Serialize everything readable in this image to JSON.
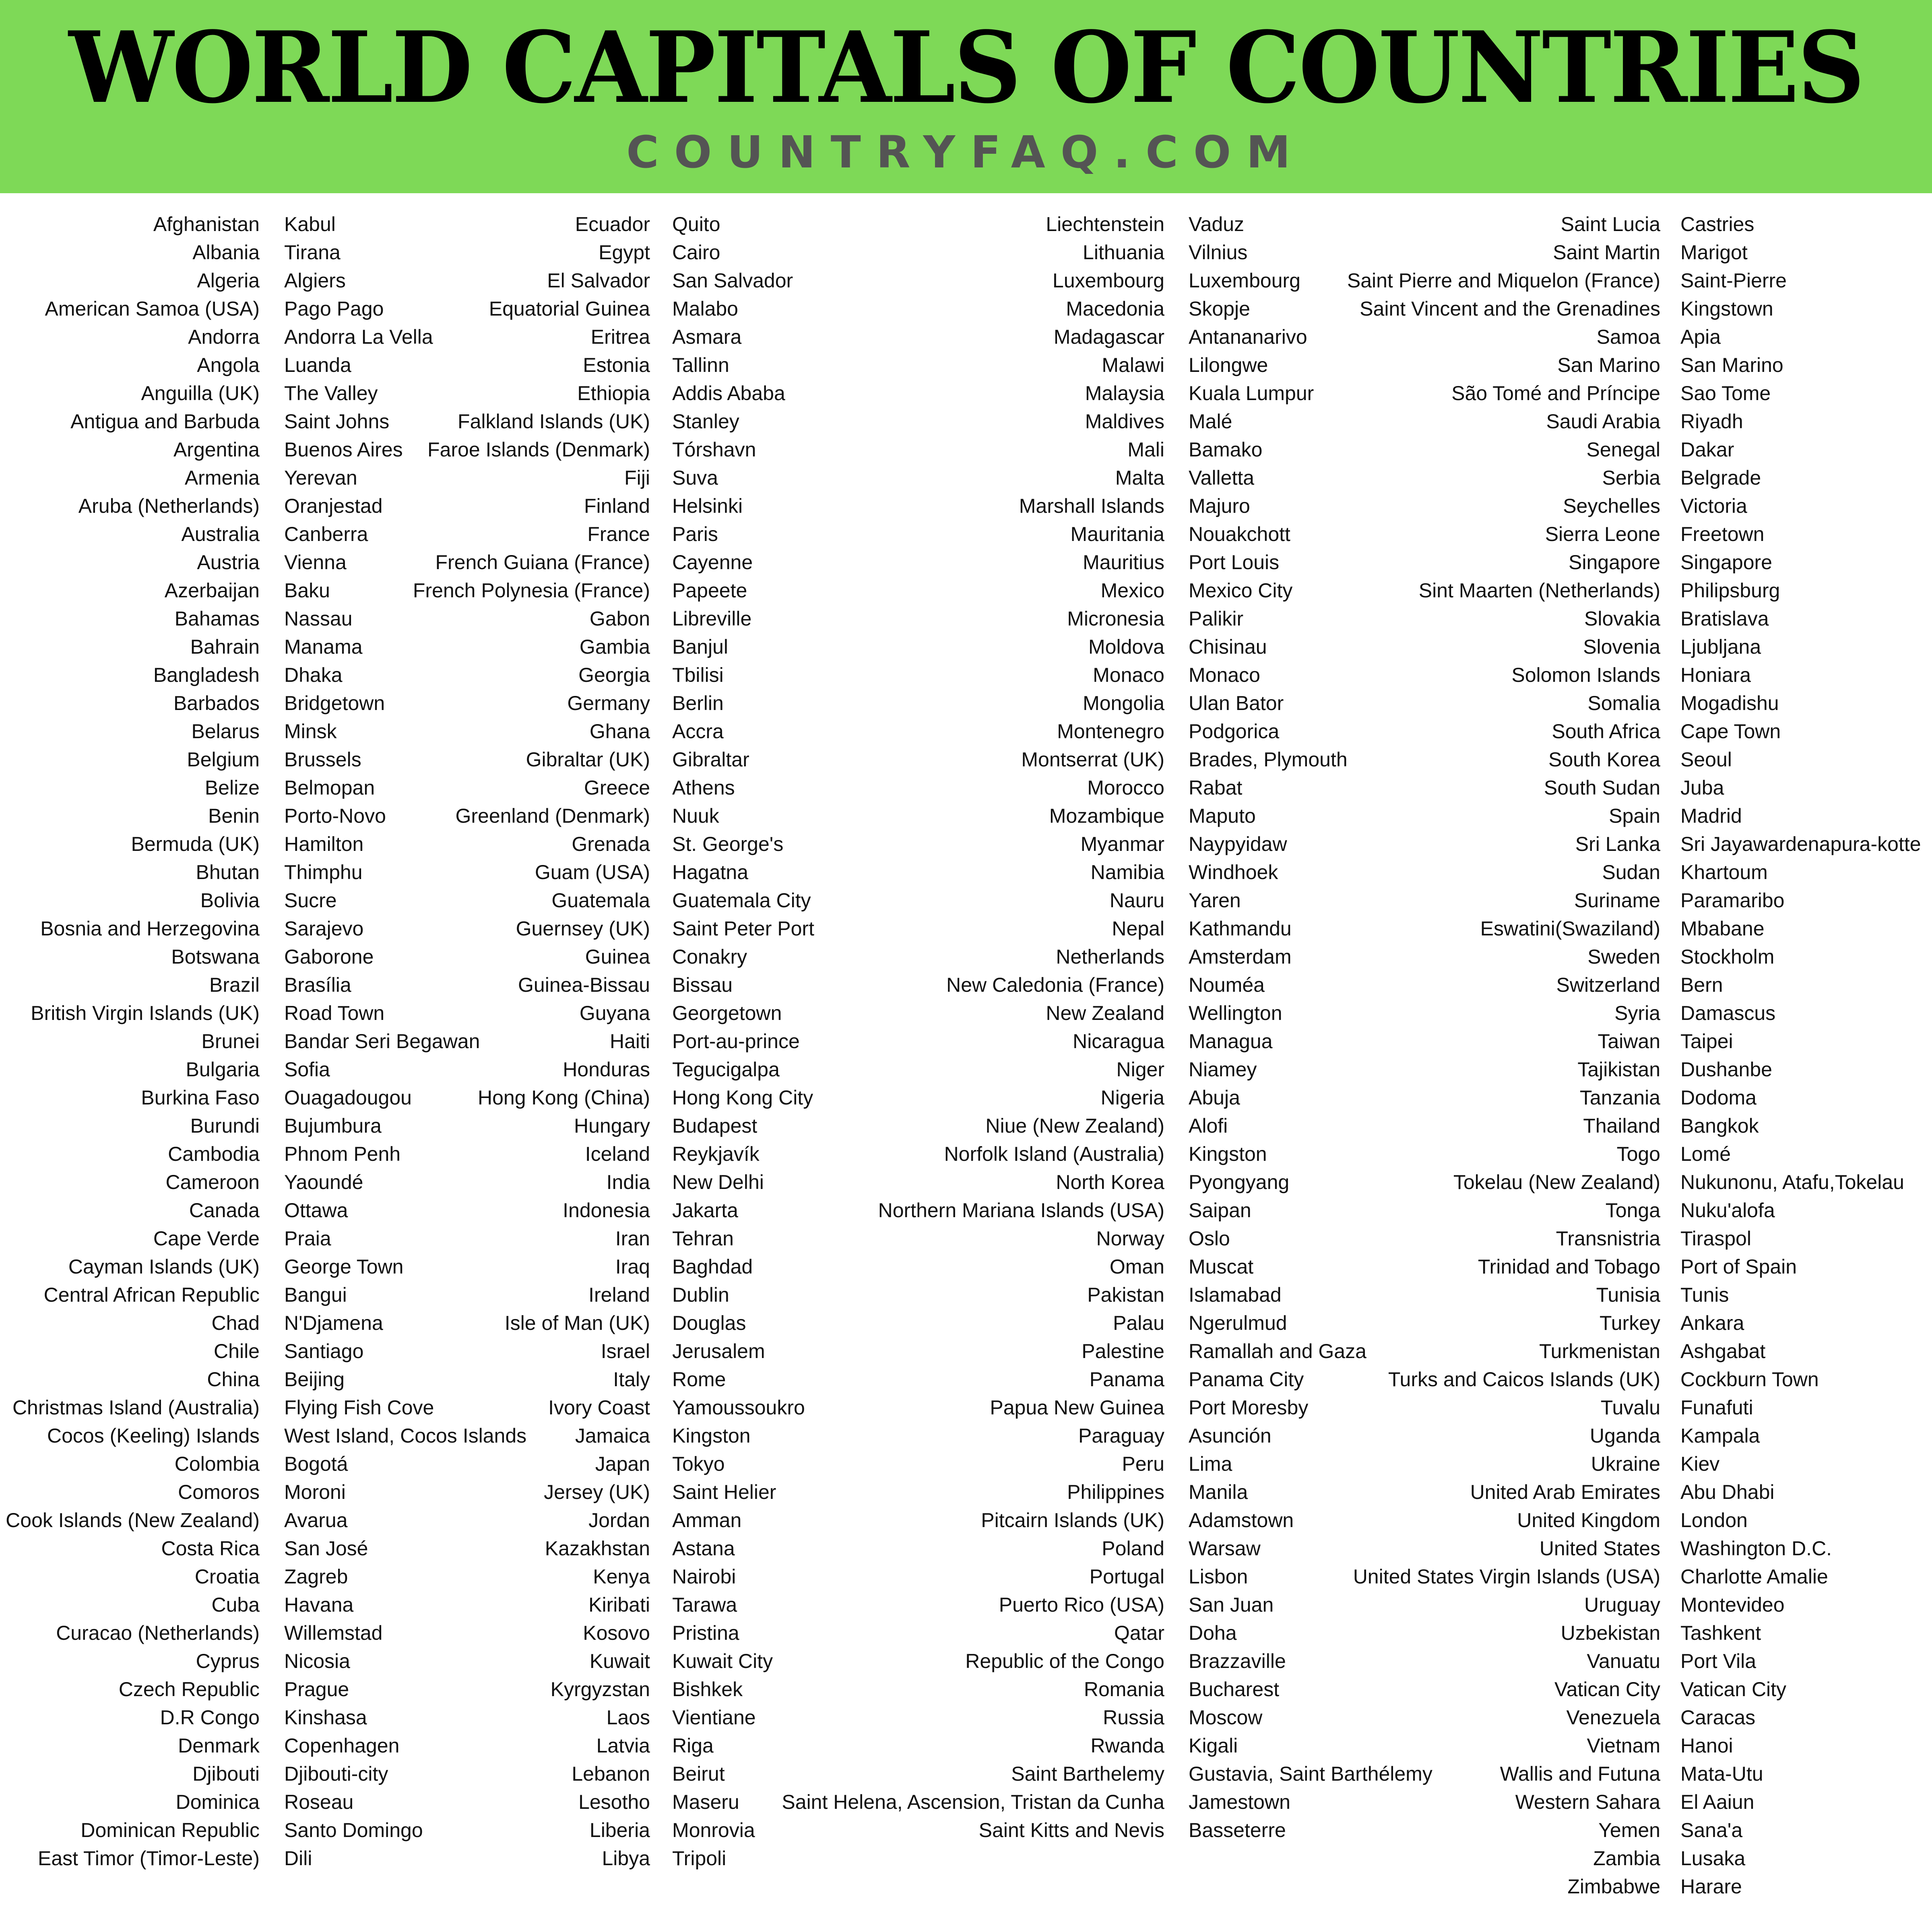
{
  "header": {
    "title": "WORLD CAPITALS OF COUNTRIES",
    "subtitle": "COUNTRYFAQ.COM",
    "background_color": "#7ed957",
    "subtitle_color": "#545454"
  },
  "columns": [
    [
      {
        "country": "Afghanistan",
        "capital": "Kabul"
      },
      {
        "country": "Albania",
        "capital": "Tirana"
      },
      {
        "country": "Algeria",
        "capital": "Algiers"
      },
      {
        "country": "American Samoa (USA)",
        "capital": "Pago Pago"
      },
      {
        "country": "Andorra",
        "capital": "Andorra La Vella"
      },
      {
        "country": "Angola",
        "capital": "Luanda"
      },
      {
        "country": "Anguilla (UK)",
        "capital": "The Valley"
      },
      {
        "country": "Antigua and Barbuda",
        "capital": "Saint Johns"
      },
      {
        "country": "Argentina",
        "capital": "Buenos Aires"
      },
      {
        "country": "Armenia",
        "capital": "Yerevan"
      },
      {
        "country": "Aruba (Netherlands)",
        "capital": "Oranjestad"
      },
      {
        "country": "Australia",
        "capital": "Canberra"
      },
      {
        "country": "Austria",
        "capital": "Vienna"
      },
      {
        "country": "Azerbaijan",
        "capital": "Baku"
      },
      {
        "country": "Bahamas",
        "capital": "Nassau"
      },
      {
        "country": "Bahrain",
        "capital": "Manama"
      },
      {
        "country": "Bangladesh",
        "capital": "Dhaka"
      },
      {
        "country": "Barbados",
        "capital": "Bridgetown"
      },
      {
        "country": "Belarus",
        "capital": "Minsk"
      },
      {
        "country": "Belgium",
        "capital": "Brussels"
      },
      {
        "country": "Belize",
        "capital": "Belmopan"
      },
      {
        "country": "Benin",
        "capital": "Porto-Novo"
      },
      {
        "country": "Bermuda (UK)",
        "capital": "Hamilton"
      },
      {
        "country": "Bhutan",
        "capital": "Thimphu"
      },
      {
        "country": "Bolivia",
        "capital": "Sucre"
      },
      {
        "country": "Bosnia and Herzegovina",
        "capital": "Sarajevo"
      },
      {
        "country": "Botswana",
        "capital": "Gaborone"
      },
      {
        "country": "Brazil",
        "capital": "Brasília"
      },
      {
        "country": "British Virgin Islands (UK)",
        "capital": "Road Town"
      },
      {
        "country": "Brunei",
        "capital": "Bandar Seri Begawan"
      },
      {
        "country": "Bulgaria",
        "capital": "Sofia"
      },
      {
        "country": "Burkina Faso",
        "capital": "Ouagadougou"
      },
      {
        "country": "Burundi",
        "capital": "Bujumbura"
      },
      {
        "country": "Cambodia",
        "capital": "Phnom Penh"
      },
      {
        "country": "Cameroon",
        "capital": "Yaoundé"
      },
      {
        "country": "Canada",
        "capital": "Ottawa"
      },
      {
        "country": "Cape Verde",
        "capital": "Praia"
      },
      {
        "country": "Cayman Islands (UK)",
        "capital": "George Town"
      },
      {
        "country": "Central African Republic",
        "capital": "Bangui"
      },
      {
        "country": "Chad",
        "capital": "N'Djamena"
      },
      {
        "country": "Chile",
        "capital": "Santiago"
      },
      {
        "country": "China",
        "capital": "Beijing"
      },
      {
        "country": "Christmas Island (Australia)",
        "capital": "Flying Fish Cove"
      },
      {
        "country": "Cocos (Keeling) Islands",
        "capital": "West Island, Cocos Islands"
      },
      {
        "country": "Colombia",
        "capital": "Bogotá"
      },
      {
        "country": "Comoros",
        "capital": "Moroni"
      },
      {
        "country": "Cook Islands (New Zealand)",
        "capital": "Avarua"
      },
      {
        "country": "Costa Rica",
        "capital": "San José"
      },
      {
        "country": "Croatia",
        "capital": "Zagreb"
      },
      {
        "country": "Cuba",
        "capital": "Havana"
      },
      {
        "country": "Curacao (Netherlands)",
        "capital": "Willemstad"
      },
      {
        "country": "Cyprus",
        "capital": "Nicosia"
      },
      {
        "country": "Czech Republic",
        "capital": "Prague"
      },
      {
        "country": "D.R Congo",
        "capital": "Kinshasa"
      },
      {
        "country": "Denmark",
        "capital": "Copenhagen"
      },
      {
        "country": "Djibouti",
        "capital": "Djibouti-city"
      },
      {
        "country": "Dominica",
        "capital": "Roseau"
      },
      {
        "country": "Dominican Republic",
        "capital": "Santo Domingo"
      },
      {
        "country": "East Timor (Timor-Leste)",
        "capital": "Dili"
      }
    ],
    [
      {
        "country": "Ecuador",
        "capital": "Quito"
      },
      {
        "country": "Egypt",
        "capital": "Cairo"
      },
      {
        "country": "El Salvador",
        "capital": "San Salvador"
      },
      {
        "country": "Equatorial Guinea",
        "capital": "Malabo"
      },
      {
        "country": "Eritrea",
        "capital": "Asmara"
      },
      {
        "country": "Estonia",
        "capital": "Tallinn"
      },
      {
        "country": "Ethiopia",
        "capital": "Addis Ababa"
      },
      {
        "country": "Falkland Islands (UK)",
        "capital": "Stanley"
      },
      {
        "country": "Faroe Islands (Denmark)",
        "capital": "Tórshavn"
      },
      {
        "country": "Fiji",
        "capital": "Suva"
      },
      {
        "country": "Finland",
        "capital": "Helsinki"
      },
      {
        "country": "France",
        "capital": "Paris"
      },
      {
        "country": "French Guiana (France)",
        "capital": "Cayenne"
      },
      {
        "country": "French Polynesia (France)",
        "capital": "Papeete"
      },
      {
        "country": "Gabon",
        "capital": "Libreville"
      },
      {
        "country": "Gambia",
        "capital": "Banjul"
      },
      {
        "country": "Georgia",
        "capital": "Tbilisi"
      },
      {
        "country": "Germany",
        "capital": "Berlin"
      },
      {
        "country": "Ghana",
        "capital": "Accra"
      },
      {
        "country": "Gibraltar (UK)",
        "capital": "Gibraltar"
      },
      {
        "country": "Greece",
        "capital": "Athens"
      },
      {
        "country": "Greenland (Denmark)",
        "capital": "Nuuk"
      },
      {
        "country": "Grenada",
        "capital": "St. George's"
      },
      {
        "country": "Guam (USA)",
        "capital": "Hagatna"
      },
      {
        "country": "Guatemala",
        "capital": "Guatemala City"
      },
      {
        "country": "Guernsey (UK)",
        "capital": "Saint Peter Port"
      },
      {
        "country": "Guinea",
        "capital": "Conakry"
      },
      {
        "country": "Guinea-Bissau",
        "capital": "Bissau"
      },
      {
        "country": "Guyana",
        "capital": "Georgetown"
      },
      {
        "country": "Haiti",
        "capital": "Port-au-prince"
      },
      {
        "country": "Honduras",
        "capital": "Tegucigalpa"
      },
      {
        "country": "Hong Kong (China)",
        "capital": "Hong Kong City"
      },
      {
        "country": "Hungary",
        "capital": "Budapest"
      },
      {
        "country": "Iceland",
        "capital": "Reykjavík"
      },
      {
        "country": "India",
        "capital": "New Delhi"
      },
      {
        "country": "Indonesia",
        "capital": "Jakarta"
      },
      {
        "country": "Iran",
        "capital": "Tehran"
      },
      {
        "country": "Iraq",
        "capital": "Baghdad"
      },
      {
        "country": "Ireland",
        "capital": "Dublin"
      },
      {
        "country": "Isle of Man (UK)",
        "capital": "Douglas"
      },
      {
        "country": "Israel",
        "capital": "Jerusalem"
      },
      {
        "country": "Italy",
        "capital": "Rome"
      },
      {
        "country": "Ivory Coast",
        "capital": "Yamoussoukro"
      },
      {
        "country": "Jamaica",
        "capital": "Kingston"
      },
      {
        "country": "Japan",
        "capital": "Tokyo"
      },
      {
        "country": "Jersey (UK)",
        "capital": "Saint Helier"
      },
      {
        "country": "Jordan",
        "capital": "Amman"
      },
      {
        "country": "Kazakhstan",
        "capital": "Astana"
      },
      {
        "country": "Kenya",
        "capital": "Nairobi"
      },
      {
        "country": "Kiribati",
        "capital": "Tarawa"
      },
      {
        "country": "Kosovo",
        "capital": "Pristina"
      },
      {
        "country": "Kuwait",
        "capital": "Kuwait City"
      },
      {
        "country": "Kyrgyzstan",
        "capital": "Bishkek"
      },
      {
        "country": "Laos",
        "capital": "Vientiane"
      },
      {
        "country": "Latvia",
        "capital": "Riga"
      },
      {
        "country": "Lebanon",
        "capital": "Beirut"
      },
      {
        "country": "Lesotho",
        "capital": "Maseru"
      },
      {
        "country": "Liberia",
        "capital": "Monrovia"
      },
      {
        "country": "Libya",
        "capital": "Tripoli"
      }
    ],
    [
      {
        "country": "Liechtenstein",
        "capital": "Vaduz"
      },
      {
        "country": "Lithuania",
        "capital": "Vilnius"
      },
      {
        "country": "Luxembourg",
        "capital": "Luxembourg"
      },
      {
        "country": "Macedonia",
        "capital": "Skopje"
      },
      {
        "country": "Madagascar",
        "capital": "Antananarivo"
      },
      {
        "country": "Malawi",
        "capital": "Lilongwe"
      },
      {
        "country": "Malaysia",
        "capital": "Kuala Lumpur"
      },
      {
        "country": "Maldives",
        "capital": "Malé"
      },
      {
        "country": "Mali",
        "capital": "Bamako"
      },
      {
        "country": "Malta",
        "capital": "Valletta"
      },
      {
        "country": "Marshall Islands",
        "capital": "Majuro"
      },
      {
        "country": "Mauritania",
        "capital": "Nouakchott"
      },
      {
        "country": "Mauritius",
        "capital": "Port Louis"
      },
      {
        "country": "Mexico",
        "capital": "Mexico City"
      },
      {
        "country": "Micronesia",
        "capital": "Palikir"
      },
      {
        "country": "Moldova",
        "capital": "Chisinau"
      },
      {
        "country": "Monaco",
        "capital": "Monaco"
      },
      {
        "country": "Mongolia",
        "capital": "Ulan Bator"
      },
      {
        "country": "Montenegro",
        "capital": "Podgorica"
      },
      {
        "country": "Montserrat (UK)",
        "capital": "Brades, Plymouth"
      },
      {
        "country": "Morocco",
        "capital": "Rabat"
      },
      {
        "country": "Mozambique",
        "capital": "Maputo"
      },
      {
        "country": "Myanmar",
        "capital": "Naypyidaw"
      },
      {
        "country": "Namibia",
        "capital": "Windhoek"
      },
      {
        "country": "Nauru",
        "capital": "Yaren"
      },
      {
        "country": "Nepal",
        "capital": "Kathmandu"
      },
      {
        "country": "Netherlands",
        "capital": "Amsterdam"
      },
      {
        "country": "New Caledonia (France)",
        "capital": "Nouméa"
      },
      {
        "country": "New Zealand",
        "capital": "Wellington"
      },
      {
        "country": "Nicaragua",
        "capital": "Managua"
      },
      {
        "country": "Niger",
        "capital": "Niamey"
      },
      {
        "country": "Nigeria",
        "capital": "Abuja"
      },
      {
        "country": "Niue (New Zealand)",
        "capital": "Alofi"
      },
      {
        "country": "Norfolk Island (Australia)",
        "capital": "Kingston"
      },
      {
        "country": "North Korea",
        "capital": "Pyongyang"
      },
      {
        "country": "Northern Mariana Islands (USA)",
        "capital": "Saipan"
      },
      {
        "country": "Norway",
        "capital": "Oslo"
      },
      {
        "country": "Oman",
        "capital": "Muscat"
      },
      {
        "country": "Pakistan",
        "capital": "Islamabad"
      },
      {
        "country": "Palau",
        "capital": "Ngerulmud"
      },
      {
        "country": "Palestine",
        "capital": "Ramallah and Gaza"
      },
      {
        "country": "Panama",
        "capital": "Panama City"
      },
      {
        "country": "Papua New Guinea",
        "capital": "Port Moresby"
      },
      {
        "country": "Paraguay",
        "capital": "Asunción"
      },
      {
        "country": "Peru",
        "capital": "Lima"
      },
      {
        "country": "Philippines",
        "capital": "Manila"
      },
      {
        "country": "Pitcairn Islands (UK)",
        "capital": "Adamstown"
      },
      {
        "country": "Poland",
        "capital": "Warsaw"
      },
      {
        "country": "Portugal",
        "capital": "Lisbon"
      },
      {
        "country": "Puerto Rico (USA)",
        "capital": "San Juan"
      },
      {
        "country": "Qatar",
        "capital": "Doha"
      },
      {
        "country": "Republic of the Congo",
        "capital": "Brazzaville"
      },
      {
        "country": "Romania",
        "capital": "Bucharest"
      },
      {
        "country": "Russia",
        "capital": "Moscow"
      },
      {
        "country": "Rwanda",
        "capital": "Kigali"
      },
      {
        "country": "Saint Barthelemy",
        "capital": "Gustavia, Saint Barthélemy"
      },
      {
        "country": "Saint Helena, Ascension, Tristan da Cunha",
        "capital": "Jamestown"
      },
      {
        "country": "Saint Kitts and Nevis",
        "capital": "Basseterre"
      }
    ],
    [
      {
        "country": "Saint Lucia",
        "capital": "Castries"
      },
      {
        "country": "Saint Martin",
        "capital": "Marigot"
      },
      {
        "country": "Saint Pierre and Miquelon (France)",
        "capital": "Saint-Pierre"
      },
      {
        "country": "Saint Vincent and the Grenadines",
        "capital": "Kingstown"
      },
      {
        "country": "Samoa",
        "capital": "Apia"
      },
      {
        "country": "San Marino",
        "capital": "San Marino"
      },
      {
        "country": "São Tomé and Príncipe",
        "capital": "Sao Tome"
      },
      {
        "country": "Saudi Arabia",
        "capital": "Riyadh"
      },
      {
        "country": "Senegal",
        "capital": "Dakar"
      },
      {
        "country": "Serbia",
        "capital": "Belgrade"
      },
      {
        "country": "Seychelles",
        "capital": "Victoria"
      },
      {
        "country": "Sierra Leone",
        "capital": "Freetown"
      },
      {
        "country": "Singapore",
        "capital": "Singapore"
      },
      {
        "country": "Sint Maarten (Netherlands)",
        "capital": "Philipsburg"
      },
      {
        "country": "Slovakia",
        "capital": "Bratislava"
      },
      {
        "country": "Slovenia",
        "capital": "Ljubljana"
      },
      {
        "country": "Solomon Islands",
        "capital": "Honiara"
      },
      {
        "country": "Somalia",
        "capital": "Mogadishu"
      },
      {
        "country": "South Africa",
        "capital": "Cape Town"
      },
      {
        "country": "South Korea",
        "capital": "Seoul"
      },
      {
        "country": "South Sudan",
        "capital": "Juba"
      },
      {
        "country": "Spain",
        "capital": "Madrid"
      },
      {
        "country": "Sri Lanka",
        "capital": "Sri Jayawardenapura-kotte"
      },
      {
        "country": "Sudan",
        "capital": "Khartoum"
      },
      {
        "country": "Suriname",
        "capital": "Paramaribo"
      },
      {
        "country": "Eswatini(Swaziland)",
        "capital": "Mbabane"
      },
      {
        "country": "Sweden",
        "capital": "Stockholm"
      },
      {
        "country": "Switzerland",
        "capital": "Bern"
      },
      {
        "country": "Syria",
        "capital": "Damascus"
      },
      {
        "country": "Taiwan",
        "capital": "Taipei"
      },
      {
        "country": "Tajikistan",
        "capital": "Dushanbe"
      },
      {
        "country": "Tanzania",
        "capital": "Dodoma"
      },
      {
        "country": "Thailand",
        "capital": "Bangkok"
      },
      {
        "country": "Togo",
        "capital": "Lomé"
      },
      {
        "country": "Tokelau (New Zealand)",
        "capital": "Nukunonu, Atafu,Tokelau"
      },
      {
        "country": "Tonga",
        "capital": "Nuku'alofa"
      },
      {
        "country": "Transnistria",
        "capital": "Tiraspol"
      },
      {
        "country": "Trinidad and Tobago",
        "capital": "Port of Spain"
      },
      {
        "country": "Tunisia",
        "capital": "Tunis"
      },
      {
        "country": "Turkey",
        "capital": "Ankara"
      },
      {
        "country": "Turkmenistan",
        "capital": "Ashgabat"
      },
      {
        "country": "Turks and Caicos Islands (UK)",
        "capital": "Cockburn Town"
      },
      {
        "country": "Tuvalu",
        "capital": "Funafuti"
      },
      {
        "country": "Uganda",
        "capital": "Kampala"
      },
      {
        "country": "Ukraine",
        "capital": "Kiev"
      },
      {
        "country": "United Arab Emirates",
        "capital": "Abu Dhabi"
      },
      {
        "country": "United Kingdom",
        "capital": "London"
      },
      {
        "country": "United States",
        "capital": "Washington D.C."
      },
      {
        "country": "United States Virgin Islands (USA)",
        "capital": "Charlotte Amalie"
      },
      {
        "country": "Uruguay",
        "capital": "Montevideo"
      },
      {
        "country": "Uzbekistan",
        "capital": "Tashkent"
      },
      {
        "country": "Vanuatu",
        "capital": "Port Vila"
      },
      {
        "country": "Vatican City",
        "capital": "Vatican City"
      },
      {
        "country": "Venezuela",
        "capital": "Caracas"
      },
      {
        "country": "Vietnam",
        "capital": "Hanoi"
      },
      {
        "country": "Wallis and Futuna",
        "capital": "Mata-Utu"
      },
      {
        "country": "Western Sahara",
        "capital": "El Aaiun"
      },
      {
        "country": "Yemen",
        "capital": "Sana'a"
      },
      {
        "country": "Zambia",
        "capital": "Lusaka"
      },
      {
        "country": "Zimbabwe",
        "capital": "Harare"
      }
    ]
  ]
}
